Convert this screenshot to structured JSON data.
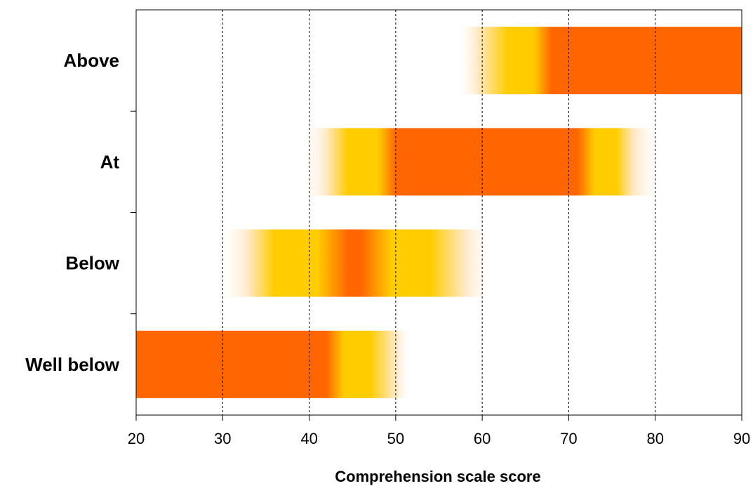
{
  "chart_data": {
    "type": "bar",
    "orientation": "horizontal",
    "title": "",
    "xlabel": "Comprehension scale score",
    "ylabel": "",
    "xlim": [
      20,
      90
    ],
    "xticks": [
      20,
      30,
      40,
      50,
      60,
      70,
      80,
      90
    ],
    "grid": "vertical dashed",
    "categories": [
      "Above",
      "At",
      "Below",
      "Well below"
    ],
    "series": [
      {
        "category": "Above",
        "range": [
          57,
          90
        ],
        "gradient": [
          [
            57,
            "fade"
          ],
          [
            59.5,
            "light"
          ],
          [
            63,
            "yellow"
          ],
          [
            66,
            "yellow"
          ],
          [
            68,
            "orange"
          ],
          [
            90,
            "orange"
          ]
        ]
      },
      {
        "category": "At",
        "range": [
          39,
          81
        ],
        "gradient": [
          [
            39,
            "fade"
          ],
          [
            42,
            "light"
          ],
          [
            44.5,
            "yellow"
          ],
          [
            48,
            "yellow"
          ],
          [
            50,
            "orange"
          ],
          [
            71,
            "orange"
          ],
          [
            73,
            "yellow"
          ],
          [
            75.5,
            "yellow"
          ],
          [
            77.5,
            "light"
          ],
          [
            81,
            "fade"
          ]
        ]
      },
      {
        "category": "Below",
        "range": [
          29.5,
          61.5
        ],
        "gradient": [
          [
            29.5,
            "fade"
          ],
          [
            33,
            "light"
          ],
          [
            36,
            "yellow"
          ],
          [
            41,
            "yellow"
          ],
          [
            44.5,
            "orange"
          ],
          [
            46,
            "orange"
          ],
          [
            49.5,
            "yellow"
          ],
          [
            54,
            "yellow"
          ],
          [
            58,
            "light"
          ],
          [
            61.5,
            "fade"
          ]
        ]
      },
      {
        "category": "Well below",
        "range": [
          20,
          52
        ],
        "gradient": [
          [
            20,
            "orange"
          ],
          [
            42,
            "orange"
          ],
          [
            44,
            "yellow"
          ],
          [
            47,
            "yellow"
          ],
          [
            50,
            "light"
          ],
          [
            52,
            "fade"
          ]
        ]
      }
    ],
    "colors": {
      "orange": "#ff6600",
      "yellow": "#ffcc00",
      "light": "#ffe8c4",
      "fade": "#ffffff"
    }
  }
}
